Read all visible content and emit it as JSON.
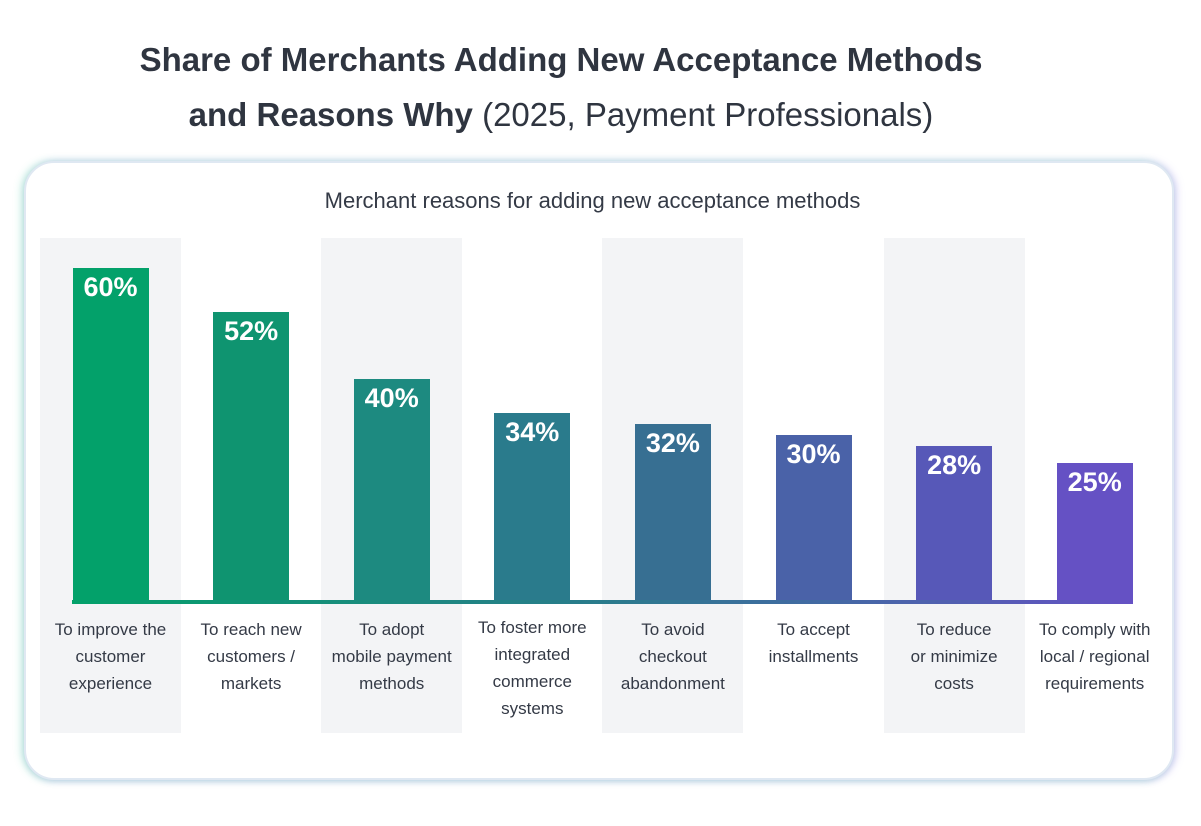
{
  "header": {
    "title_bold_line1": "Share of Merchants Adding New Acceptance Methods",
    "title_bold_line2": "and Reasons Why",
    "title_light": "(2025, Payment Professionals)"
  },
  "chart_data": {
    "type": "bar",
    "title": "Merchant reasons for adding new acceptance methods",
    "categories": [
      "To improve the\ncustomer\nexperience",
      "To reach new\ncustomers /\nmarkets",
      "To adopt\nmobile payment\nmethods",
      "To foster more\nintegrated\ncommerce\nsystems",
      "To avoid\ncheckout\nabandonment",
      "To accept\ninstallments",
      "To reduce\nor minimize\ncosts",
      "To comply with\nlocal / regional\nrequirements"
    ],
    "values": [
      60,
      52,
      40,
      34,
      32,
      30,
      28,
      25
    ],
    "value_labels": [
      "60%",
      "52%",
      "40%",
      "34%",
      "32%",
      "30%",
      "28%",
      "25%"
    ],
    "colors": [
      "#03a16a",
      "#0f9470",
      "#1d8a80",
      "#2a7b8c",
      "#376f92",
      "#4a62a8",
      "#5758b8",
      "#6551c4"
    ],
    "ylim": [
      0,
      60
    ],
    "unit": "%",
    "grid": false,
    "legend": "none"
  }
}
